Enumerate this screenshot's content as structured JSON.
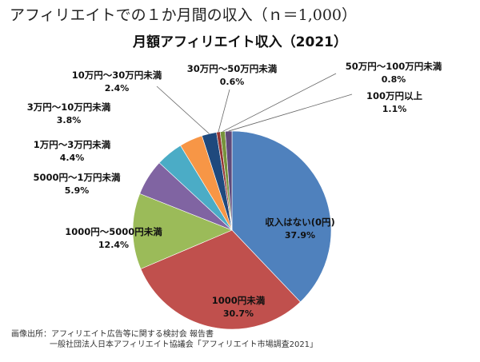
{
  "header": {
    "title": "アフィリエイトでの１か月間の収入（ｎ＝1,000）"
  },
  "chart_data": {
    "type": "pie",
    "title": "月額アフィリエイト収入（2021）",
    "slices": [
      {
        "label": "収入はない(0円)",
        "value": 37.9,
        "value_label": "37.9%",
        "color": "#4F81BD"
      },
      {
        "label": "1000円未満",
        "value": 30.7,
        "value_label": "30.7%",
        "color": "#C0504D"
      },
      {
        "label": "1000円～5000円未満",
        "value": 12.4,
        "value_label": "12.4%",
        "color": "#9BBB59"
      },
      {
        "label": "5000円～1万円未満",
        "value": 5.9,
        "value_label": "5.9%",
        "color": "#8064A2"
      },
      {
        "label": "1万円～3万円未満",
        "value": 4.4,
        "value_label": "4.4%",
        "color": "#4BACC6"
      },
      {
        "label": "3万円～10万円未満",
        "value": 3.8,
        "value_label": "3.8%",
        "color": "#F79646"
      },
      {
        "label": "10万円～30万円未満",
        "value": 2.4,
        "value_label": "2.4%",
        "color": "#1F497D"
      },
      {
        "label": "30万円～50万円未満",
        "value": 0.6,
        "value_label": "0.6%",
        "color": "#943634"
      },
      {
        "label": "50万円～100万円未満",
        "value": 0.8,
        "value_label": "0.8%",
        "color": "#77933C"
      },
      {
        "label": "100万円以上",
        "value": 1.1,
        "value_label": "1.1%",
        "color": "#5F497A"
      }
    ]
  },
  "source": {
    "line1": "画像出所：アフィリエイト広告等に関する検討会 報告書",
    "line2": "一般社団法人日本アフィリエイト協議会「アフィリエイト市場調査2021」"
  }
}
